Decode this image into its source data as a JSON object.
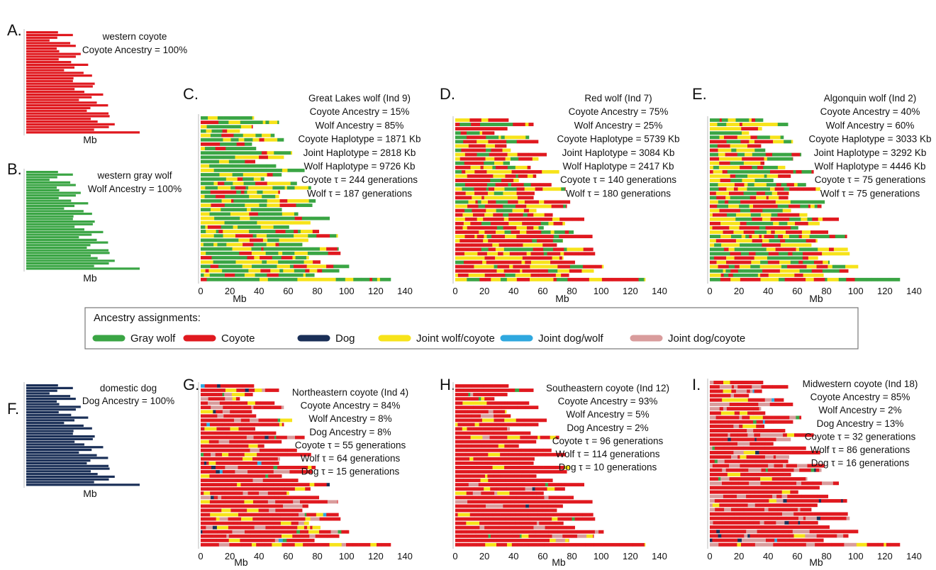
{
  "colors": {
    "gray_wolf": "#3aa544",
    "coyote": "#e0191f",
    "dog": "#1a2f57",
    "joint_wolf_coyote": "#f7e31a",
    "joint_dog_wolf": "#2fa8df",
    "joint_dog_coyote": "#d99c9c"
  },
  "legend": {
    "title": "Ancestry assignments:",
    "items": [
      {
        "key": "gray_wolf",
        "label": "Gray wolf"
      },
      {
        "key": "coyote",
        "label": "Coyote"
      },
      {
        "key": "dog",
        "label": "Dog"
      },
      {
        "key": "joint_wolf_coyote",
        "label": "Joint wolf/coyote"
      },
      {
        "key": "joint_dog_wolf",
        "label": "Joint dog/wolf"
      },
      {
        "key": "joint_dog_coyote",
        "label": "Joint dog/coyote"
      }
    ]
  },
  "chart_data": [
    {
      "type": "bar",
      "panel": "A.",
      "xlabel": "Mb",
      "info": [
        "western coyote",
        "Coyote Ancestry = 100%"
      ],
      "composition": {
        "coyote": 100
      }
    },
    {
      "type": "bar",
      "panel": "B.",
      "xlabel": "Mb",
      "info": [
        "western gray wolf",
        "Wolf Ancestry = 100%"
      ],
      "composition": {
        "gray_wolf": 100
      }
    },
    {
      "type": "bar",
      "panel": "C.",
      "xlabel": "Mb",
      "x_ticks": [
        0,
        20,
        40,
        60,
        80,
        100,
        120,
        140
      ],
      "xlim": [
        0,
        140
      ],
      "info": [
        "Great Lakes wolf (Ind 9)",
        "Coyote Ancestry = 15%",
        "Wolf Ancestry = 85%",
        "Coyote Haplotype = 1871 Kb",
        "Joint Haplotype = 2818 Kb",
        "Wolf Haplotype = 9726 Kb",
        "Coyote τ = 244 generations",
        "Wolf τ = 187 generations"
      ],
      "composition": {
        "gray_wolf": 58,
        "joint_wolf_coyote": 28,
        "coyote": 14
      }
    },
    {
      "type": "bar",
      "panel": "D.",
      "xlabel": "Mb",
      "x_ticks": [
        0,
        20,
        40,
        60,
        80,
        100,
        120,
        140
      ],
      "xlim": [
        0,
        140
      ],
      "info": [
        "Red wolf (Ind 7)",
        "Coyote Ancestry = 75%",
        "Wolf Ancestry = 25%",
        "Coyote Haplotype = 5739 Kb",
        "Joint Haplotype = 3084 Kb",
        "Wolf Haplotype = 2417 Kb",
        "Coyote τ = 140 generations",
        "Wolf τ = 180 generations"
      ],
      "composition": {
        "coyote": 60,
        "joint_wolf_coyote": 26,
        "gray_wolf": 14
      }
    },
    {
      "type": "bar",
      "panel": "E.",
      "xlabel": "Mb",
      "x_ticks": [
        0,
        20,
        40,
        60,
        80,
        100,
        120,
        140
      ],
      "xlim": [
        0,
        140
      ],
      "info": [
        "Algonquin wolf (Ind 2)",
        "Coyote Ancestry = 40%",
        "Wolf Ancestry = 60%",
        "Coyote Haplotype = 3033 Kb",
        "Joint Haplotype = 3292 Kb",
        "Wolf Haplotype = 4446 Kb",
        "Coyote τ = 75 generations",
        "Wolf τ = 75 generations"
      ],
      "composition": {
        "gray_wolf": 36,
        "coyote": 32,
        "joint_wolf_coyote": 32
      }
    },
    {
      "type": "bar",
      "panel": "F.",
      "xlabel": "Mb",
      "info": [
        "domestic dog",
        "Dog Ancestry = 100%"
      ],
      "composition": {
        "dog": 100
      }
    },
    {
      "type": "bar",
      "panel": "G.",
      "xlabel": "Mb",
      "x_ticks": [
        0,
        20,
        40,
        60,
        80,
        100,
        120,
        140
      ],
      "xlim": [
        0,
        140
      ],
      "info": [
        "Northeastern coyote (Ind 4)",
        "Coyote Ancestry = 84%",
        "Wolf Ancestry = 8%",
        "Dog Ancestry = 8%",
        "Coyote τ = 55 generations",
        "Wolf τ = 64 generations",
        "Dog τ = 15 generations"
      ],
      "composition": {
        "coyote": 74,
        "joint_wolf_coyote": 10,
        "joint_dog_coyote": 11,
        "gray_wolf": 2,
        "dog": 1.5,
        "joint_dog_wolf": 1.5
      }
    },
    {
      "type": "bar",
      "panel": "H.",
      "xlabel": "Mb",
      "x_ticks": [
        0,
        20,
        40,
        60,
        80,
        100,
        120,
        140
      ],
      "xlim": [
        0,
        140
      ],
      "info": [
        "Southeastern coyote (Ind 12)",
        "Coyote Ancestry = 93%",
        "Wolf Ancestry = 5%",
        "Dog Ancestry = 2%",
        "Coyote τ = 96 generations",
        "Wolf τ = 114 generations",
        "Dog τ = 10 generations"
      ],
      "composition": {
        "coyote": 86,
        "joint_wolf_coyote": 8,
        "joint_dog_coyote": 4,
        "gray_wolf": 1.5,
        "dog": 0.5
      }
    },
    {
      "type": "bar",
      "panel": "I.",
      "xlabel": "Mb",
      "x_ticks": [
        0,
        20,
        40,
        60,
        80,
        100,
        120,
        140
      ],
      "xlim": [
        0,
        140
      ],
      "info": [
        "Midwestern coyote (Ind 18)",
        "Coyote Ancestry = 85%",
        "Wolf Ancestry = 2%",
        "Dog Ancestry = 13%",
        "Coyote τ = 32 generations",
        "Wolf τ = 86 generations",
        "Dog τ = 16 generations"
      ],
      "composition": {
        "coyote": 74,
        "joint_dog_coyote": 16,
        "joint_wolf_coyote": 4,
        "dog": 3,
        "gray_wolf": 1.5,
        "joint_dog_wolf": 1.5
      }
    }
  ]
}
